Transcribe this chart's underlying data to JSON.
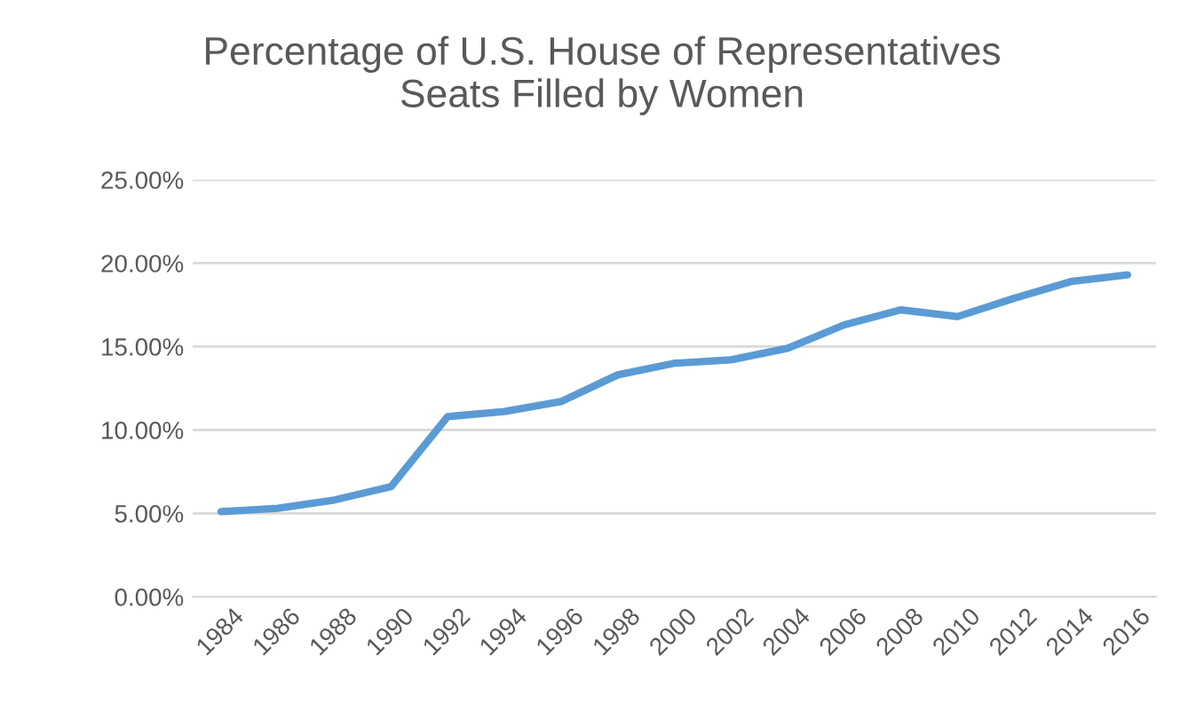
{
  "chart_data": {
    "type": "line",
    "title": "Percentage of U.S. House of Representatives\nSeats Filled by Women",
    "categories": [
      "1984",
      "1986",
      "1988",
      "1990",
      "1992",
      "1994",
      "1996",
      "1998",
      "2000",
      "2002",
      "2004",
      "2006",
      "2008",
      "2010",
      "2012",
      "2014",
      "2016"
    ],
    "series": [
      {
        "color": "#5b9bd5",
        "values": [
          5.1,
          5.3,
          5.8,
          6.6,
          10.8,
          11.1,
          11.7,
          13.3,
          14.0,
          14.2,
          14.9,
          16.3,
          17.2,
          16.8,
          17.9,
          18.9,
          19.3
        ]
      }
    ],
    "ylim": [
      0,
      25
    ],
    "yticks": [
      {
        "value": 0,
        "label": "0.00%"
      },
      {
        "value": 5,
        "label": "5.00%"
      },
      {
        "value": 10,
        "label": "10.00%"
      },
      {
        "value": 15,
        "label": "15.00%"
      },
      {
        "value": 20,
        "label": "20.00%"
      },
      {
        "value": 25,
        "label": "25.00%"
      }
    ],
    "grid": "y",
    "marker": "none",
    "line_style": "solid"
  }
}
